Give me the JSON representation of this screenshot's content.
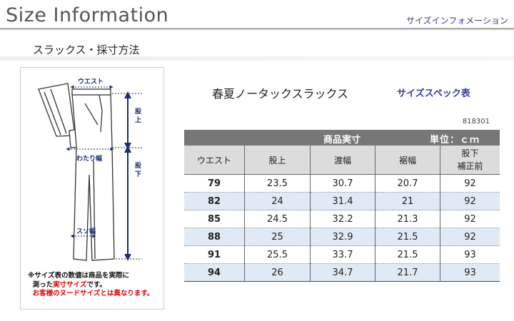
{
  "header": {
    "title": "Size Information",
    "subtitle": "サイズインフォメーション"
  },
  "section": {
    "title": "スラックス・採寸方法"
  },
  "diagram": {
    "labels": {
      "waist": "ウエスト",
      "rise": [
        "股",
        "上"
      ],
      "thigh": "わたり幅",
      "inseam": [
        "股",
        "下"
      ],
      "hem": "スソ幅"
    },
    "note": [
      "※サイズ表の数値は商品を実際に",
      "測った",
      "実寸サイズ",
      "です。",
      "お客様のヌードサイズとは異なります。"
    ],
    "colors": {
      "outline": "#333333",
      "measure": "#1a2e6e",
      "note_red": "#e00000"
    }
  },
  "product": {
    "title": "春夏ノータックスラックス",
    "spec_label": "サイズスペック表",
    "code": "818301"
  },
  "table": {
    "band_label": "商品実寸",
    "unit_label": "単位：ｃｍ",
    "headers": [
      "ウエスト",
      "股上",
      "渡幅",
      "裾幅"
    ],
    "last_header": [
      "股下",
      "補正前"
    ],
    "rows": [
      [
        "79",
        "23.5",
        "30.7",
        "20.7",
        "92"
      ],
      [
        "82",
        "24",
        "31.4",
        "21",
        "92"
      ],
      [
        "85",
        "24.5",
        "32.2",
        "21.3",
        "92"
      ],
      [
        "88",
        "25",
        "32.9",
        "21.5",
        "92"
      ],
      [
        "91",
        "25.5",
        "33.7",
        "21.5",
        "93"
      ],
      [
        "94",
        "26",
        "34.7",
        "21.7",
        "93"
      ]
    ],
    "colors": {
      "band": "#777777",
      "header": "#dcdcdc",
      "alt_row": "#dfeaf5"
    }
  }
}
